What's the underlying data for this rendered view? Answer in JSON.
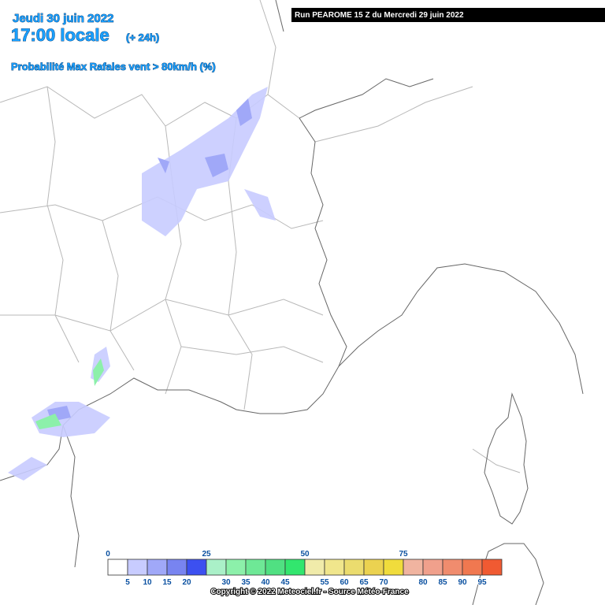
{
  "header": {
    "date": "Jeudi 30 juin 2022",
    "time": "17:00 locale",
    "lead": "(+ 24h)",
    "parameter": "Probabilité Max Rafales vent > 80km/h (%)"
  },
  "run": "Run PEAROME 15 Z du Mercredi 29 juin 2022",
  "legend": {
    "ticks": [
      0,
      5,
      10,
      15,
      20,
      25,
      30,
      35,
      40,
      45,
      50,
      55,
      60,
      65,
      70,
      75,
      80,
      85,
      90,
      95
    ],
    "colors": [
      "#ffffff",
      "#c8ccff",
      "#a0a8f8",
      "#7884f0",
      "#3c50f0",
      "#aaf0c8",
      "#8cf0aa",
      "#6ee896",
      "#50e082",
      "#32e66e",
      "#f0ebaa",
      "#f0e68c",
      "#ebdc6e",
      "#ebd250",
      "#f0dc3c",
      "#f0b4a0",
      "#f0a08c",
      "#f08c6e",
      "#f07850",
      "#f05a32"
    ]
  },
  "copyright": "Copyright © 2022 Meteociel.fr - Source Météo-France"
}
